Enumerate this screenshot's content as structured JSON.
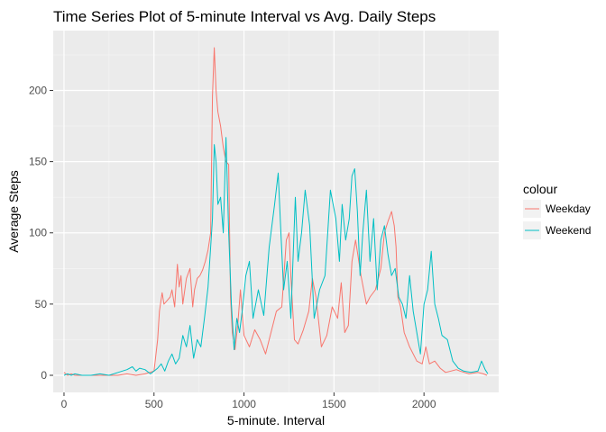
{
  "chart_data": {
    "type": "line",
    "title": "Time Series Plot of 5-minute Interval vs Avg. Daily Steps",
    "xlabel": "5-minute. Interval",
    "ylabel": "Average Steps",
    "xlim": [
      -60,
      2415
    ],
    "ylim": [
      -12,
      242
    ],
    "x_ticks": [
      0,
      500,
      1000,
      1500,
      2000
    ],
    "y_ticks": [
      0,
      50,
      100,
      150,
      200
    ],
    "grid": true,
    "legend": {
      "title": "colour",
      "position": "right"
    },
    "series": [
      {
        "name": "Weekday",
        "color": "#f8766d",
        "x": [
          0,
          20,
          40,
          60,
          100,
          150,
          200,
          250,
          300,
          350,
          400,
          450,
          500,
          520,
          530,
          545,
          555,
          570,
          590,
          600,
          615,
          630,
          640,
          650,
          660,
          680,
          700,
          715,
          725,
          740,
          755,
          770,
          785,
          800,
          815,
          825,
          835,
          845,
          855,
          870,
          885,
          900,
          915,
          925,
          935,
          950,
          965,
          980,
          1000,
          1030,
          1060,
          1090,
          1120,
          1150,
          1180,
          1210,
          1235,
          1250,
          1260,
          1280,
          1300,
          1330,
          1360,
          1380,
          1400,
          1430,
          1460,
          1490,
          1520,
          1540,
          1560,
          1580,
          1600,
          1620,
          1650,
          1680,
          1700,
          1730,
          1760,
          1780,
          1800,
          1820,
          1835,
          1845,
          1855,
          1870,
          1890,
          1920,
          1960,
          1990,
          2010,
          2030,
          2060,
          2090,
          2120,
          2150,
          2180,
          2200,
          2250,
          2300,
          2330,
          2350
        ],
        "values": [
          2,
          0,
          1,
          0,
          0,
          0,
          0,
          0,
          0,
          1,
          0,
          1,
          3,
          25,
          45,
          58,
          50,
          52,
          55,
          60,
          48,
          78,
          62,
          70,
          50,
          68,
          75,
          48,
          60,
          68,
          70,
          74,
          80,
          88,
          100,
          196,
          230,
          200,
          185,
          175,
          160,
          150,
          148,
          55,
          30,
          18,
          35,
          60,
          28,
          20,
          32,
          25,
          15,
          30,
          45,
          48,
          95,
          100,
          70,
          25,
          22,
          32,
          45,
          68,
          55,
          20,
          28,
          48,
          40,
          65,
          30,
          35,
          80,
          95,
          70,
          50,
          55,
          60,
          75,
          100,
          108,
          115,
          105,
          90,
          55,
          48,
          30,
          20,
          10,
          8,
          20,
          8,
          10,
          5,
          2,
          3,
          4,
          3,
          1,
          2,
          1,
          0
        ]
      },
      {
        "name": "Weekend",
        "color": "#00bfc4",
        "x": [
          0,
          20,
          40,
          60,
          100,
          150,
          200,
          250,
          300,
          350,
          380,
          400,
          420,
          450,
          480,
          500,
          520,
          540,
          560,
          580,
          600,
          620,
          640,
          660,
          680,
          700,
          720,
          740,
          760,
          780,
          800,
          815,
          825,
          835,
          845,
          855,
          870,
          885,
          900,
          915,
          930,
          945,
          960,
          975,
          990,
          1010,
          1030,
          1050,
          1080,
          1110,
          1140,
          1170,
          1190,
          1205,
          1220,
          1240,
          1260,
          1285,
          1300,
          1320,
          1340,
          1365,
          1390,
          1420,
          1450,
          1480,
          1510,
          1530,
          1545,
          1565,
          1585,
          1600,
          1615,
          1630,
          1645,
          1660,
          1680,
          1700,
          1720,
          1740,
          1760,
          1780,
          1800,
          1820,
          1840,
          1860,
          1880,
          1900,
          1920,
          1940,
          1960,
          1980,
          2000,
          2020,
          2040,
          2060,
          2080,
          2100,
          2130,
          2160,
          2190,
          2220,
          2260,
          2300,
          2320,
          2340,
          2355
        ],
        "values": [
          0,
          1,
          0,
          1,
          0,
          0,
          1,
          0,
          2,
          4,
          6,
          3,
          5,
          4,
          1,
          3,
          5,
          8,
          3,
          10,
          15,
          8,
          12,
          28,
          20,
          35,
          12,
          25,
          20,
          40,
          62,
          90,
          110,
          162,
          150,
          120,
          125,
          100,
          167,
          100,
          50,
          18,
          40,
          30,
          45,
          70,
          80,
          40,
          60,
          42,
          90,
          120,
          142,
          100,
          60,
          80,
          40,
          125,
          80,
          100,
          130,
          105,
          40,
          60,
          70,
          130,
          110,
          80,
          120,
          95,
          110,
          140,
          145,
          115,
          70,
          100,
          130,
          80,
          110,
          60,
          95,
          105,
          85,
          70,
          75,
          55,
          50,
          40,
          70,
          45,
          30,
          15,
          50,
          60,
          87,
          50,
          40,
          28,
          25,
          10,
          5,
          3,
          2,
          3,
          10,
          4,
          1
        ]
      }
    ]
  }
}
